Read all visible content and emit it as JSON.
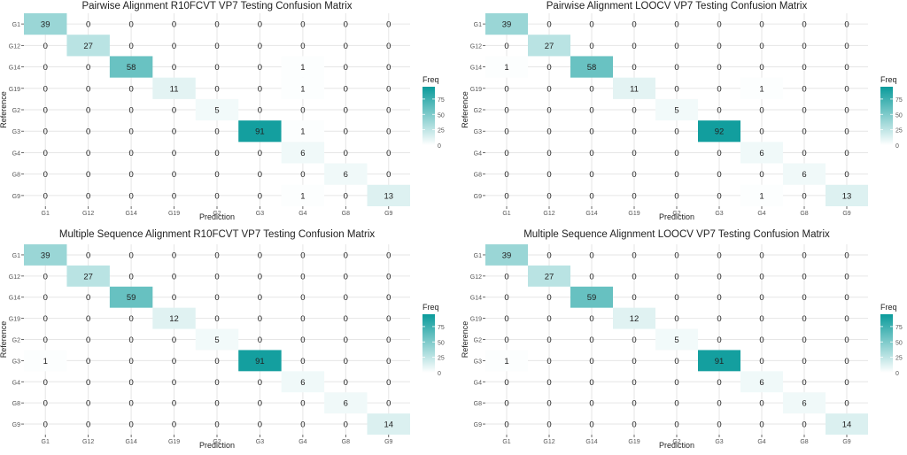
{
  "colors": {
    "high": "#0a9b9b",
    "low": "#ffffff",
    "grid": "#e6e6e6",
    "panel_bg": "#ffffff",
    "text": "#222222",
    "tick": "#555555"
  },
  "chart_data": [
    {
      "type": "heatmap",
      "title": "Pairwise Alignment R10FCVT VP7 Testing Confusion Matrix",
      "xlabel": "Prediction",
      "ylabel": "Reference",
      "x_categories": [
        "G1",
        "G12",
        "G14",
        "G19",
        "G2",
        "G3",
        "G4",
        "G8",
        "G9"
      ],
      "y_categories": [
        "G1",
        "G12",
        "G14",
        "G19",
        "G2",
        "G3",
        "G4",
        "G8",
        "G9"
      ],
      "matrix": [
        [
          39,
          0,
          0,
          0,
          0,
          0,
          0,
          0,
          0
        ],
        [
          0,
          27,
          0,
          0,
          0,
          0,
          0,
          0,
          0
        ],
        [
          0,
          0,
          58,
          0,
          0,
          0,
          1,
          0,
          0
        ],
        [
          0,
          0,
          0,
          11,
          0,
          0,
          1,
          0,
          0
        ],
        [
          0,
          0,
          0,
          0,
          5,
          0,
          0,
          0,
          0
        ],
        [
          0,
          0,
          0,
          0,
          0,
          91,
          1,
          0,
          0
        ],
        [
          0,
          0,
          0,
          0,
          0,
          0,
          6,
          0,
          0
        ],
        [
          0,
          0,
          0,
          0,
          0,
          0,
          0,
          6,
          0
        ],
        [
          0,
          0,
          0,
          0,
          0,
          0,
          1,
          0,
          13
        ]
      ],
      "legend_title": "Freq",
      "legend_ticks": [
        0,
        25,
        50,
        75
      ],
      "color_range": [
        0,
        95
      ]
    },
    {
      "type": "heatmap",
      "title": "Pairwise Alignment LOOCV VP7 Testing Confusion Matrix",
      "xlabel": "Prediction",
      "ylabel": "Reference",
      "x_categories": [
        "G1",
        "G12",
        "G14",
        "G19",
        "G2",
        "G3",
        "G4",
        "G8",
        "G9"
      ],
      "y_categories": [
        "G1",
        "G12",
        "G14",
        "G19",
        "G2",
        "G3",
        "G4",
        "G8",
        "G9"
      ],
      "matrix": [
        [
          39,
          0,
          0,
          0,
          0,
          0,
          0,
          0,
          0
        ],
        [
          0,
          27,
          0,
          0,
          0,
          0,
          0,
          0,
          0
        ],
        [
          1,
          0,
          58,
          0,
          0,
          0,
          0,
          0,
          0
        ],
        [
          0,
          0,
          0,
          11,
          0,
          0,
          1,
          0,
          0
        ],
        [
          0,
          0,
          0,
          0,
          5,
          0,
          0,
          0,
          0
        ],
        [
          0,
          0,
          0,
          0,
          0,
          92,
          0,
          0,
          0
        ],
        [
          0,
          0,
          0,
          0,
          0,
          0,
          6,
          0,
          0
        ],
        [
          0,
          0,
          0,
          0,
          0,
          0,
          0,
          6,
          0
        ],
        [
          0,
          0,
          0,
          0,
          0,
          0,
          1,
          0,
          13
        ]
      ],
      "legend_title": "Freq",
      "legend_ticks": [
        0,
        25,
        50,
        75
      ],
      "color_range": [
        0,
        95
      ]
    },
    {
      "type": "heatmap",
      "title": "Multiple Sequence Alignment R10FCVT VP7 Testing Confusion Matrix",
      "xlabel": "Prediction",
      "ylabel": "Reference",
      "x_categories": [
        "G1",
        "G12",
        "G14",
        "G19",
        "G2",
        "G3",
        "G4",
        "G8",
        "G9"
      ],
      "y_categories": [
        "G1",
        "G12",
        "G14",
        "G19",
        "G2",
        "G3",
        "G4",
        "G8",
        "G9"
      ],
      "matrix": [
        [
          39,
          0,
          0,
          0,
          0,
          0,
          0,
          0,
          0
        ],
        [
          0,
          27,
          0,
          0,
          0,
          0,
          0,
          0,
          0
        ],
        [
          0,
          0,
          59,
          0,
          0,
          0,
          0,
          0,
          0
        ],
        [
          0,
          0,
          0,
          12,
          0,
          0,
          0,
          0,
          0
        ],
        [
          0,
          0,
          0,
          0,
          5,
          0,
          0,
          0,
          0
        ],
        [
          1,
          0,
          0,
          0,
          0,
          91,
          0,
          0,
          0
        ],
        [
          0,
          0,
          0,
          0,
          0,
          0,
          6,
          0,
          0
        ],
        [
          0,
          0,
          0,
          0,
          0,
          0,
          0,
          6,
          0
        ],
        [
          0,
          0,
          0,
          0,
          0,
          0,
          0,
          0,
          14
        ]
      ],
      "legend_title": "Freq",
      "legend_ticks": [
        0,
        25,
        50,
        75
      ],
      "color_range": [
        0,
        95
      ]
    },
    {
      "type": "heatmap",
      "title": "Multiple Sequence Alignment LOOCV VP7 Testing Confusion Matrix",
      "xlabel": "Prediction",
      "ylabel": "Reference",
      "x_categories": [
        "G1",
        "G12",
        "G14",
        "G19",
        "G2",
        "G3",
        "G4",
        "G8",
        "G9"
      ],
      "y_categories": [
        "G1",
        "G12",
        "G14",
        "G19",
        "G2",
        "G3",
        "G4",
        "G8",
        "G9"
      ],
      "matrix": [
        [
          39,
          0,
          0,
          0,
          0,
          0,
          0,
          0,
          0
        ],
        [
          0,
          27,
          0,
          0,
          0,
          0,
          0,
          0,
          0
        ],
        [
          0,
          0,
          59,
          0,
          0,
          0,
          0,
          0,
          0
        ],
        [
          0,
          0,
          0,
          12,
          0,
          0,
          0,
          0,
          0
        ],
        [
          0,
          0,
          0,
          0,
          5,
          0,
          0,
          0,
          0
        ],
        [
          1,
          0,
          0,
          0,
          0,
          91,
          0,
          0,
          0
        ],
        [
          0,
          0,
          0,
          0,
          0,
          0,
          6,
          0,
          0
        ],
        [
          0,
          0,
          0,
          0,
          0,
          0,
          0,
          6,
          0
        ],
        [
          0,
          0,
          0,
          0,
          0,
          0,
          0,
          0,
          14
        ]
      ],
      "legend_title": "Freq",
      "legend_ticks": [
        0,
        25,
        50,
        75
      ],
      "color_range": [
        0,
        95
      ]
    }
  ]
}
